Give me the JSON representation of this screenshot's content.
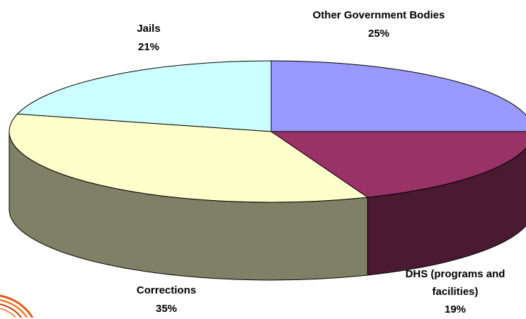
{
  "chart_data": {
    "type": "pie",
    "title": "",
    "slices": [
      {
        "label": "Other Government Bodies",
        "value": 25,
        "value_label": "25%",
        "color": "#9999ff"
      },
      {
        "label": "DHS (programs and facilities)",
        "value": 19,
        "value_label": "19%",
        "color": "#993366"
      },
      {
        "label": "Corrections",
        "value": 35,
        "value_label": "35%",
        "color": "#ffffcc"
      },
      {
        "label": "Jails",
        "value": 21,
        "value_label": "21%",
        "color": "#ccffff"
      }
    ],
    "side_colors": {
      "DHS (programs and facilities)": "#4a1a33",
      "Corrections": "#808066"
    },
    "style": "3d",
    "start_angle_deg": 90,
    "direction": "clockwise",
    "legend": "none"
  }
}
